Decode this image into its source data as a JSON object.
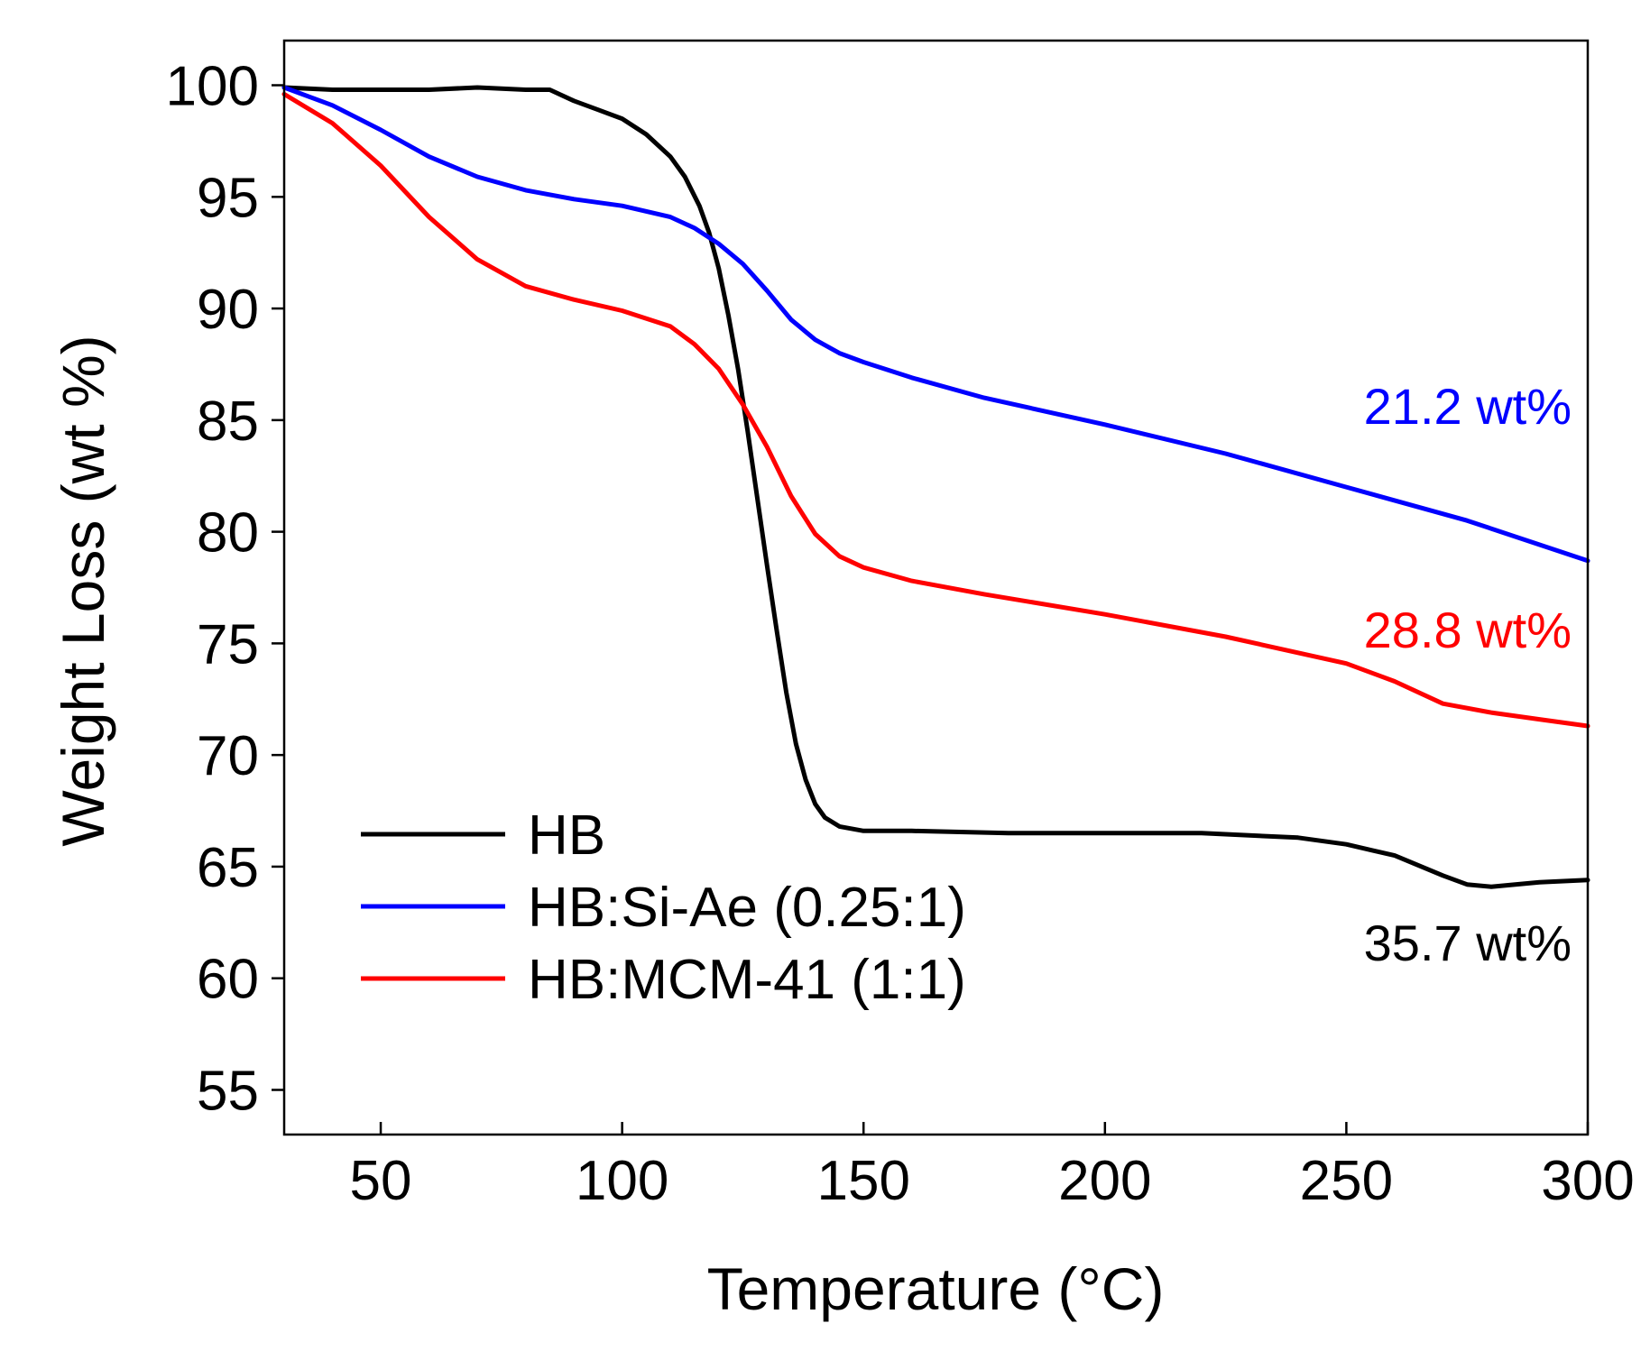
{
  "chart_data": {
    "type": "line",
    "title": "",
    "xlabel": "Temperature (°C)",
    "ylabel": "Weight Loss (wt %)",
    "xlim": [
      30,
      300
    ],
    "ylim": [
      53,
      102
    ],
    "xticks": [
      50,
      100,
      150,
      200,
      250,
      300
    ],
    "yticks": [
      55,
      60,
      65,
      70,
      75,
      80,
      85,
      90,
      95,
      100
    ],
    "xtick_labels": [
      "50",
      "100",
      "150",
      "200",
      "250",
      "300"
    ],
    "ytick_labels": [
      "55",
      "60",
      "65",
      "70",
      "75",
      "80",
      "85",
      "90",
      "95",
      "100"
    ],
    "grid": false,
    "legend_position": "lower-left",
    "series": [
      {
        "name": "HB",
        "color": "#000000",
        "x": [
          30,
          40,
          50,
          60,
          70,
          80,
          85,
          90,
          95,
          100,
          105,
          110,
          113,
          116,
          118,
          120,
          122,
          124,
          126,
          128,
          130,
          132,
          134,
          136,
          138,
          140,
          142,
          145,
          150,
          160,
          180,
          200,
          220,
          240,
          250,
          260,
          270,
          275,
          280,
          285,
          290,
          300
        ],
        "y": [
          99.9,
          99.8,
          99.8,
          99.8,
          99.9,
          99.8,
          99.8,
          99.3,
          98.9,
          98.5,
          97.8,
          96.8,
          95.9,
          94.6,
          93.4,
          91.8,
          89.7,
          87.3,
          84.5,
          81.5,
          78.5,
          75.6,
          72.8,
          70.5,
          68.9,
          67.8,
          67.2,
          66.8,
          66.6,
          66.6,
          66.5,
          66.5,
          66.5,
          66.3,
          66.0,
          65.5,
          64.6,
          64.2,
          64.1,
          64.2,
          64.3,
          64.4
        ]
      },
      {
        "name": "HB:Si-Ae (0.25:1)",
        "color": "#0000ff",
        "x": [
          30,
          40,
          50,
          60,
          70,
          80,
          90,
          100,
          110,
          115,
          120,
          125,
          130,
          135,
          140,
          145,
          150,
          160,
          175,
          200,
          225,
          250,
          275,
          300
        ],
        "y": [
          99.9,
          99.1,
          98.0,
          96.8,
          95.9,
          95.3,
          94.9,
          94.6,
          94.1,
          93.6,
          92.9,
          92.0,
          90.8,
          89.5,
          88.6,
          88.0,
          87.6,
          86.9,
          86.0,
          84.8,
          83.5,
          82.0,
          80.5,
          78.7
        ]
      },
      {
        "name": "HB:MCM-41 (1:1)",
        "color": "#ff0000",
        "x": [
          30,
          40,
          50,
          60,
          70,
          80,
          90,
          100,
          110,
          115,
          120,
          125,
          130,
          135,
          140,
          145,
          150,
          160,
          175,
          200,
          225,
          250,
          260,
          270,
          280,
          290,
          300
        ],
        "y": [
          99.6,
          98.3,
          96.4,
          94.1,
          92.2,
          91.0,
          90.4,
          89.9,
          89.2,
          88.4,
          87.3,
          85.7,
          83.8,
          81.6,
          79.9,
          78.9,
          78.4,
          77.8,
          77.2,
          76.3,
          75.3,
          74.1,
          73.3,
          72.3,
          71.9,
          71.6,
          71.3
        ]
      }
    ],
    "annotations": [
      {
        "text": "21.2 wt%",
        "color": "#0000ff"
      },
      {
        "text": "28.8 wt%",
        "color": "#ff0000"
      },
      {
        "text": "35.7 wt%",
        "color": "#000000"
      }
    ]
  }
}
